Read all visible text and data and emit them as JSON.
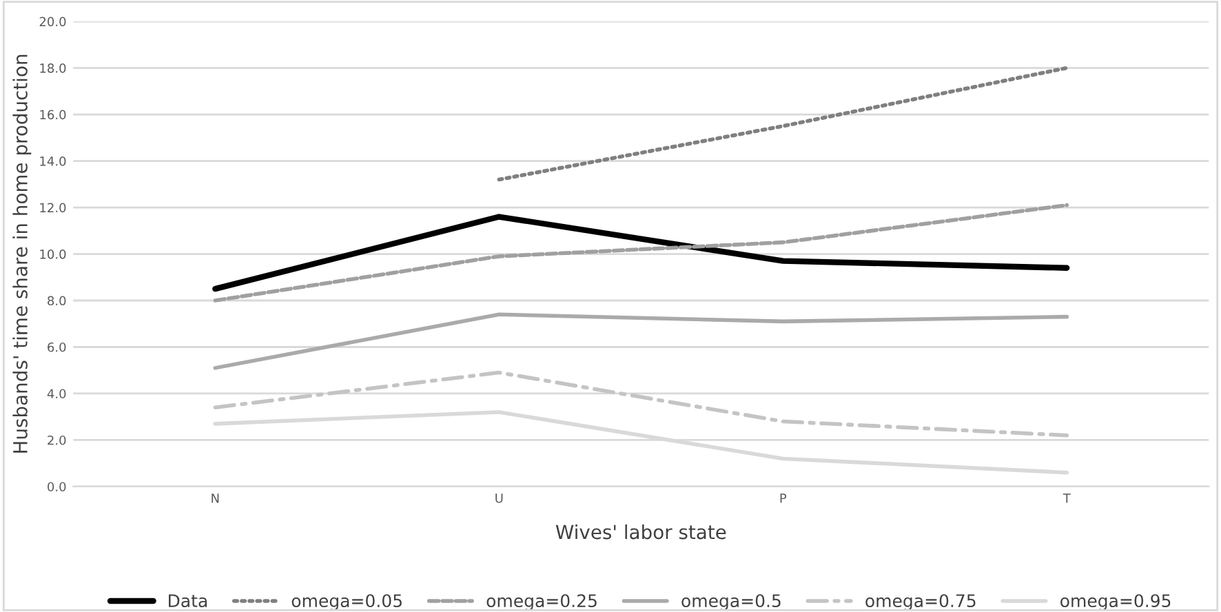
{
  "chart_data": {
    "type": "line",
    "xlabel": "Wives' labor state",
    "ylabel": "Husbands' time share in home production",
    "categories": [
      "N",
      "U",
      "P",
      "T"
    ],
    "series": [
      {
        "name": "Data",
        "color": "#000000",
        "line_style": "solid",
        "values": [
          8.5,
          11.6,
          9.7,
          9.4
        ]
      },
      {
        "name": "omega=0.05",
        "color": "#7f7f7f",
        "line_style": "dotted",
        "values": [
          null,
          13.2,
          15.5,
          18.0
        ]
      },
      {
        "name": "omega=0.25",
        "color": "#a0a0a0",
        "line_style": "dashed",
        "values": [
          8.0,
          9.9,
          10.5,
          12.1
        ]
      },
      {
        "name": "omega=0.5",
        "color": "#aaaaaa",
        "line_style": "solid",
        "values": [
          5.1,
          7.4,
          7.1,
          7.3
        ]
      },
      {
        "name": "omega=0.75",
        "color": "#c4c4c4",
        "line_style": "dashdot",
        "values": [
          3.4,
          4.9,
          2.8,
          2.2
        ]
      },
      {
        "name": "omega=0.95",
        "color": "#d9d9d9",
        "line_style": "solid",
        "values": [
          2.7,
          3.2,
          1.2,
          0.6
        ]
      }
    ],
    "ylim": [
      0,
      20
    ],
    "yticks": [
      {
        "value": 0,
        "label": "0.0"
      },
      {
        "value": 2,
        "label": "2.0"
      },
      {
        "value": 4,
        "label": "4.0"
      },
      {
        "value": 6,
        "label": "6.0"
      },
      {
        "value": 8,
        "label": "8.0"
      },
      {
        "value": 10,
        "label": "10.0"
      },
      {
        "value": 12,
        "label": "12.0"
      },
      {
        "value": 14,
        "label": "14.0"
      },
      {
        "value": 16,
        "label": "16.0"
      },
      {
        "value": 18,
        "label": "18.0"
      },
      {
        "value": 20,
        "label": "20.0"
      }
    ],
    "grid": "y",
    "legend": "bottom",
    "marker": "none"
  }
}
